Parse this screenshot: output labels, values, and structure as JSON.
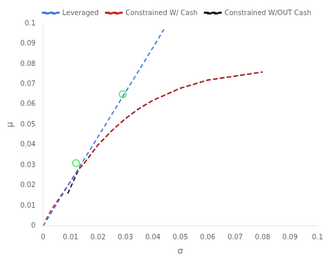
{
  "chart_data": {
    "type": "line",
    "xlabel": "σ",
    "ylabel": "μ",
    "xlim": [
      0,
      0.1
    ],
    "ylim": [
      0,
      0.1
    ],
    "xticks": [
      0,
      0.01,
      0.02,
      0.03,
      0.04,
      0.05,
      0.06,
      0.07,
      0.08,
      0.09,
      0.1
    ],
    "yticks": [
      0,
      0.01,
      0.02,
      0.03,
      0.04,
      0.05,
      0.06,
      0.07,
      0.08,
      0.09,
      0.1
    ],
    "grid": false,
    "legend": "upper right",
    "series": [
      {
        "name": "Leveraged",
        "color": "#4477dd",
        "line_style": "dashed",
        "type": "line",
        "x": [
          0.0,
          0.005,
          0.01,
          0.015,
          0.02,
          0.025,
          0.03,
          0.035,
          0.04,
          0.044
        ],
        "values": [
          0.0,
          0.011,
          0.022,
          0.033,
          0.044,
          0.055,
          0.066,
          0.077,
          0.088,
          0.097
        ]
      },
      {
        "name": "Constrained W/ Cash",
        "color": "#cc2222",
        "line_style": "dashed",
        "type": "line",
        "x": [
          0.001,
          0.003,
          0.005,
          0.007,
          0.009,
          0.011,
          0.013,
          0.015,
          0.02,
          0.025,
          0.03,
          0.035,
          0.04,
          0.05,
          0.06,
          0.07,
          0.08
        ],
        "values": [
          0.003,
          0.008,
          0.012,
          0.016,
          0.02,
          0.024,
          0.028,
          0.031,
          0.04,
          0.047,
          0.053,
          0.058,
          0.062,
          0.068,
          0.072,
          0.074,
          0.076
        ]
      },
      {
        "name": "Constrained W/OUT Cash",
        "color": "#111111",
        "line_style": "dashed",
        "type": "line",
        "x": [
          0.009,
          0.011,
          0.012,
          0.013,
          0.015,
          0.02,
          0.025,
          0.03,
          0.035,
          0.04,
          0.05,
          0.06,
          0.07,
          0.08
        ],
        "values": [
          0.016,
          0.022,
          0.025,
          0.028,
          0.031,
          0.04,
          0.047,
          0.053,
          0.058,
          0.062,
          0.068,
          0.072,
          0.074,
          0.076
        ]
      },
      {
        "color": "#44ee44",
        "marker": "circle",
        "type": "scatter",
        "x": [
          0.012
        ],
        "values": [
          0.031
        ]
      },
      {
        "color": "#44ee44",
        "marker": "circle",
        "type": "scatter",
        "x": [
          0.029
        ],
        "values": [
          0.065
        ]
      }
    ]
  }
}
